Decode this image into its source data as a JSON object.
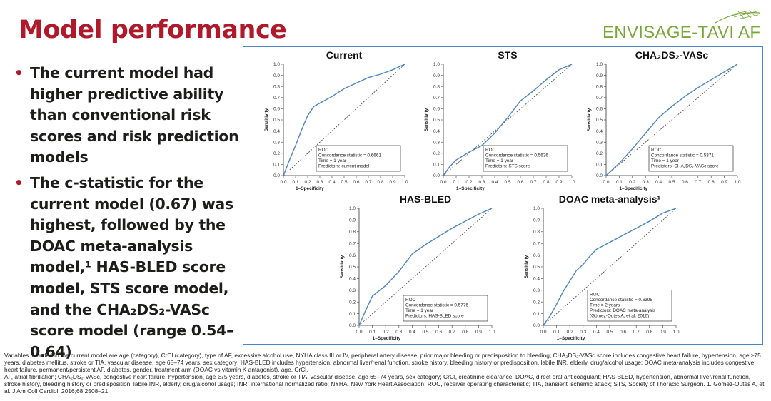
{
  "slide": {
    "title": "Model performance",
    "logo_text": "ENVISAGE-TAVI AF",
    "bullets": [
      "The current model had higher predictive ability than conventional risk scores and risk prediction models",
      "The c-statistic for the current model (0.67) was highest, followed by the DOAC meta-analysis model,¹ HAS-BLED score model, STS score model, and the CHA₂DS₂-VASc score model (range 0.54–0.64)"
    ],
    "footnotes": [
      "Variables included in the current model are age (category), CrCl (category), type of AF, excessive alcohol use, NYHA class III or IV, peripheral artery disease, prior major bleeding or predisposition to bleeding; CHA₂DS₂-VASc score includes congestive heart failure, hypertension, age ≥75 years, diabetes mellitus, stroke or TIA, vascular disease, age 65–74 years, sex category; HAS-BLED includes hypertension, abnormal liver/renal function, stroke history, bleeding history or predisposition, labile INR, elderly, drug/alcohol usage; DOAC meta-analysis includes congestive heart failure, permanent/persistent AF, diabetes, gender, treatment arm (DOAC vs vitamin K antagonist), age, CrCl.",
      "AF, atrial fibrillation; CHA₂DS₂-VASc, congestive heart failure, hypertension, age ≥75 years, diabetes, stroke or TIA, vascular disease, age 65–74 years, sex category; CrCl, creatinine clearance; DOAC, direct oral anticoagulant; HAS-BLED, hypertension, abnormal liver/renal function, stroke history, bleeding history or predisposition, labile INR, elderly, drug/alcohol usage; INR, international normalized ratio; NYHA, New York Heart Association; ROC, receiver operating characteristic; TIA, transient ischemic attack; STS, Society of Thoracic Surgeon. 1. Gómez-Outes A, et al. J Am Coll Cardiol. 2016;68:2508–21."
    ]
  },
  "colors": {
    "title": "#b0192a",
    "curve": "#4a86c5",
    "frame": "#4a86c5",
    "logo": "#7aa838"
  },
  "chart_data": [
    {
      "type": "line",
      "title": "Current",
      "xlabel": "1–Specificity",
      "ylabel": "Sensitivity",
      "xlim": [
        0,
        1
      ],
      "ylim": [
        0,
        1
      ],
      "ticks": [
        "0.0",
        "0.1",
        "0.2",
        "0.3",
        "0.4",
        "0.5",
        "0.6",
        "0.7",
        "0.8",
        "0.9",
        "1.0"
      ],
      "reference_line": "diagonal",
      "legend": [
        "ROC",
        "Concordance statistic = 0.6661",
        "Time = 1 year",
        "Predictors: current model"
      ],
      "legend_position": "bottom-right",
      "series": [
        {
          "x": [
            0,
            0.05,
            0.1,
            0.15,
            0.2,
            0.25,
            0.3,
            0.35,
            0.4,
            0.5,
            0.6,
            0.7,
            0.8,
            0.9,
            1.0
          ],
          "y": [
            0,
            0.14,
            0.27,
            0.41,
            0.54,
            0.62,
            0.65,
            0.68,
            0.71,
            0.78,
            0.83,
            0.88,
            0.91,
            0.95,
            1.0
          ]
        }
      ]
    },
    {
      "type": "line",
      "title": "STS",
      "xlabel": "1–Specificity",
      "ylabel": "Sensitivity",
      "xlim": [
        0,
        1
      ],
      "ylim": [
        0,
        1
      ],
      "ticks": [
        "0.0",
        "0.1",
        "0.2",
        "0.3",
        "0.4",
        "0.5",
        "0.6",
        "0.7",
        "0.8",
        "0.9",
        "1.0"
      ],
      "reference_line": "diagonal",
      "legend": [
        "ROC",
        "Concordance statistic = 0.5636",
        "Time = 1 year",
        "Predictors: STS score"
      ],
      "legend_position": "bottom-right",
      "series": [
        {
          "x": [
            0,
            0.05,
            0.1,
            0.2,
            0.3,
            0.4,
            0.5,
            0.6,
            0.7,
            0.8,
            0.9,
            1.0
          ],
          "y": [
            0,
            0.08,
            0.14,
            0.21,
            0.27,
            0.38,
            0.52,
            0.67,
            0.76,
            0.86,
            0.95,
            1.0
          ]
        }
      ]
    },
    {
      "type": "line",
      "title": "CHA₂DS₂-VASc",
      "xlabel": "1–Specificity",
      "ylabel": "Sensitivity",
      "xlim": [
        0,
        1
      ],
      "ylim": [
        0,
        1
      ],
      "ticks": [
        "0.0",
        "0.1",
        "0.2",
        "0.3",
        "0.4",
        "0.5",
        "0.6",
        "0.7",
        "0.8",
        "0.9",
        "1.0"
      ],
      "reference_line": "diagonal",
      "legend": [
        "ROC",
        "Concordance statistic = 0.5371",
        "Time = 1 year",
        "Predictors: CHA₂DS₂-VASc score"
      ],
      "legend_position": "bottom-right",
      "series": [
        {
          "x": [
            0,
            0.1,
            0.2,
            0.3,
            0.4,
            0.5,
            0.6,
            0.7,
            0.8,
            0.9,
            1.0
          ],
          "y": [
            0,
            0.11,
            0.24,
            0.38,
            0.52,
            0.62,
            0.71,
            0.79,
            0.86,
            0.93,
            1.0
          ]
        }
      ]
    },
    {
      "type": "line",
      "title": "HAS-BLED",
      "xlabel": "1–Specificity",
      "ylabel": "Sensitivity",
      "xlim": [
        0,
        1
      ],
      "ylim": [
        0,
        1
      ],
      "ticks": [
        "0.0",
        "0.1",
        "0.2",
        "0.3",
        "0.4",
        "0.5",
        "0.6",
        "0.7",
        "0.8",
        "0.9",
        "1.0"
      ],
      "reference_line": "diagonal",
      "legend": [
        "ROC",
        "Concordance statistic = 0.5776",
        "Time = 1 year",
        "Predictors: HAS-BLED score"
      ],
      "legend_position": "bottom-right",
      "series": [
        {
          "x": [
            0,
            0.05,
            0.1,
            0.2,
            0.3,
            0.4,
            0.5,
            0.6,
            0.7,
            0.8,
            0.9,
            1.0
          ],
          "y": [
            0,
            0.13,
            0.25,
            0.34,
            0.46,
            0.61,
            0.69,
            0.76,
            0.83,
            0.89,
            0.95,
            1.0
          ]
        }
      ]
    },
    {
      "type": "line",
      "title": "DOAC meta-analysis¹",
      "xlabel": "1–Specificity",
      "ylabel": "Sensitivity",
      "xlim": [
        0,
        1
      ],
      "ylim": [
        0,
        1
      ],
      "ticks": [
        "0.0",
        "0.1",
        "0.2",
        "0.3",
        "0.4",
        "0.5",
        "0.6",
        "0.7",
        "0.8",
        "0.9",
        "1.0"
      ],
      "reference_line": "diagonal",
      "legend": [
        "ROC",
        "Concordance statistic = 0.6395",
        "Time = 2 years",
        "Predictors: DOAC meta-analysis",
        "(Gómez-Outes A, et al. 2016)"
      ],
      "legend_position": "bottom-right",
      "series": [
        {
          "x": [
            0,
            0.05,
            0.1,
            0.15,
            0.2,
            0.25,
            0.3,
            0.35,
            0.4,
            0.5,
            0.6,
            0.7,
            0.8,
            0.9,
            1.0
          ],
          "y": [
            0,
            0.08,
            0.18,
            0.29,
            0.38,
            0.47,
            0.52,
            0.59,
            0.65,
            0.71,
            0.77,
            0.83,
            0.89,
            0.96,
            1.0
          ]
        }
      ]
    }
  ]
}
